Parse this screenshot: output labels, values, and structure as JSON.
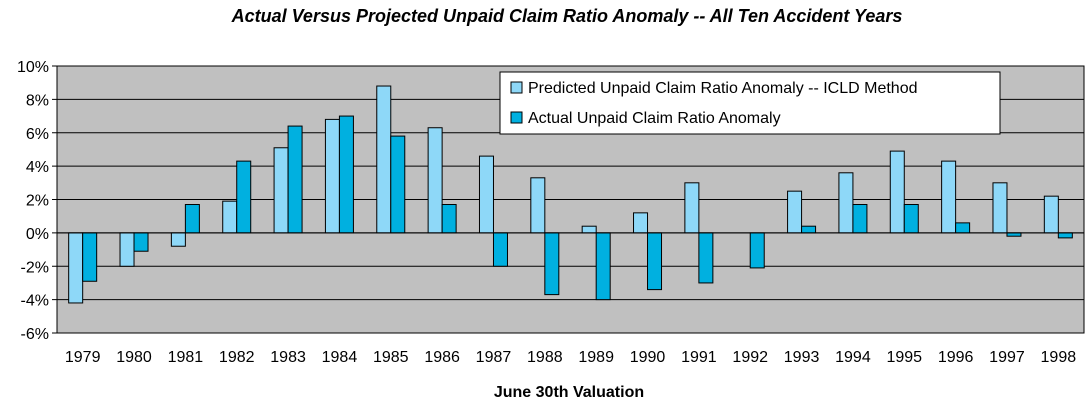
{
  "chart_data": {
    "type": "bar",
    "title": "Actual Versus Projected Unpaid Claim Ratio Anomaly -- All Ten Accident Years",
    "xlabel": "June 30th Valuation",
    "ylabel": "",
    "ylim": [
      -6,
      10
    ],
    "yticks": [
      -6,
      -4,
      -2,
      0,
      2,
      4,
      6,
      8,
      10
    ],
    "ytick_labels": [
      "-6%",
      "-4%",
      "-2%",
      "0%",
      "2%",
      "4%",
      "6%",
      "8%",
      "10%"
    ],
    "grid": true,
    "legend_position": "top-right",
    "categories": [
      "1979",
      "1980",
      "1981",
      "1982",
      "1983",
      "1984",
      "1985",
      "1986",
      "1987",
      "1988",
      "1989",
      "1990",
      "1991",
      "1992",
      "1993",
      "1994",
      "1995",
      "1996",
      "1997",
      "1998"
    ],
    "series": [
      {
        "name": "Predicted Unpaid Claim Ratio Anomaly -- ICLD Method",
        "color": "#8ed8f8",
        "values": [
          -4.2,
          -2.0,
          -0.8,
          1.9,
          5.1,
          6.8,
          8.8,
          6.3,
          4.6,
          3.3,
          0.4,
          1.2,
          3.0,
          0.0,
          2.5,
          3.6,
          4.9,
          4.3,
          3.0,
          2.2
        ]
      },
      {
        "name": "Actual Unpaid Claim Ratio Anomaly",
        "color": "#00b0e0",
        "values": [
          -2.9,
          -1.1,
          1.7,
          4.3,
          6.4,
          7.0,
          5.8,
          1.7,
          -2.0,
          -3.7,
          -4.0,
          -3.4,
          -3.0,
          -2.1,
          0.4,
          1.7,
          1.7,
          0.6,
          -0.2,
          -0.3
        ]
      }
    ]
  }
}
